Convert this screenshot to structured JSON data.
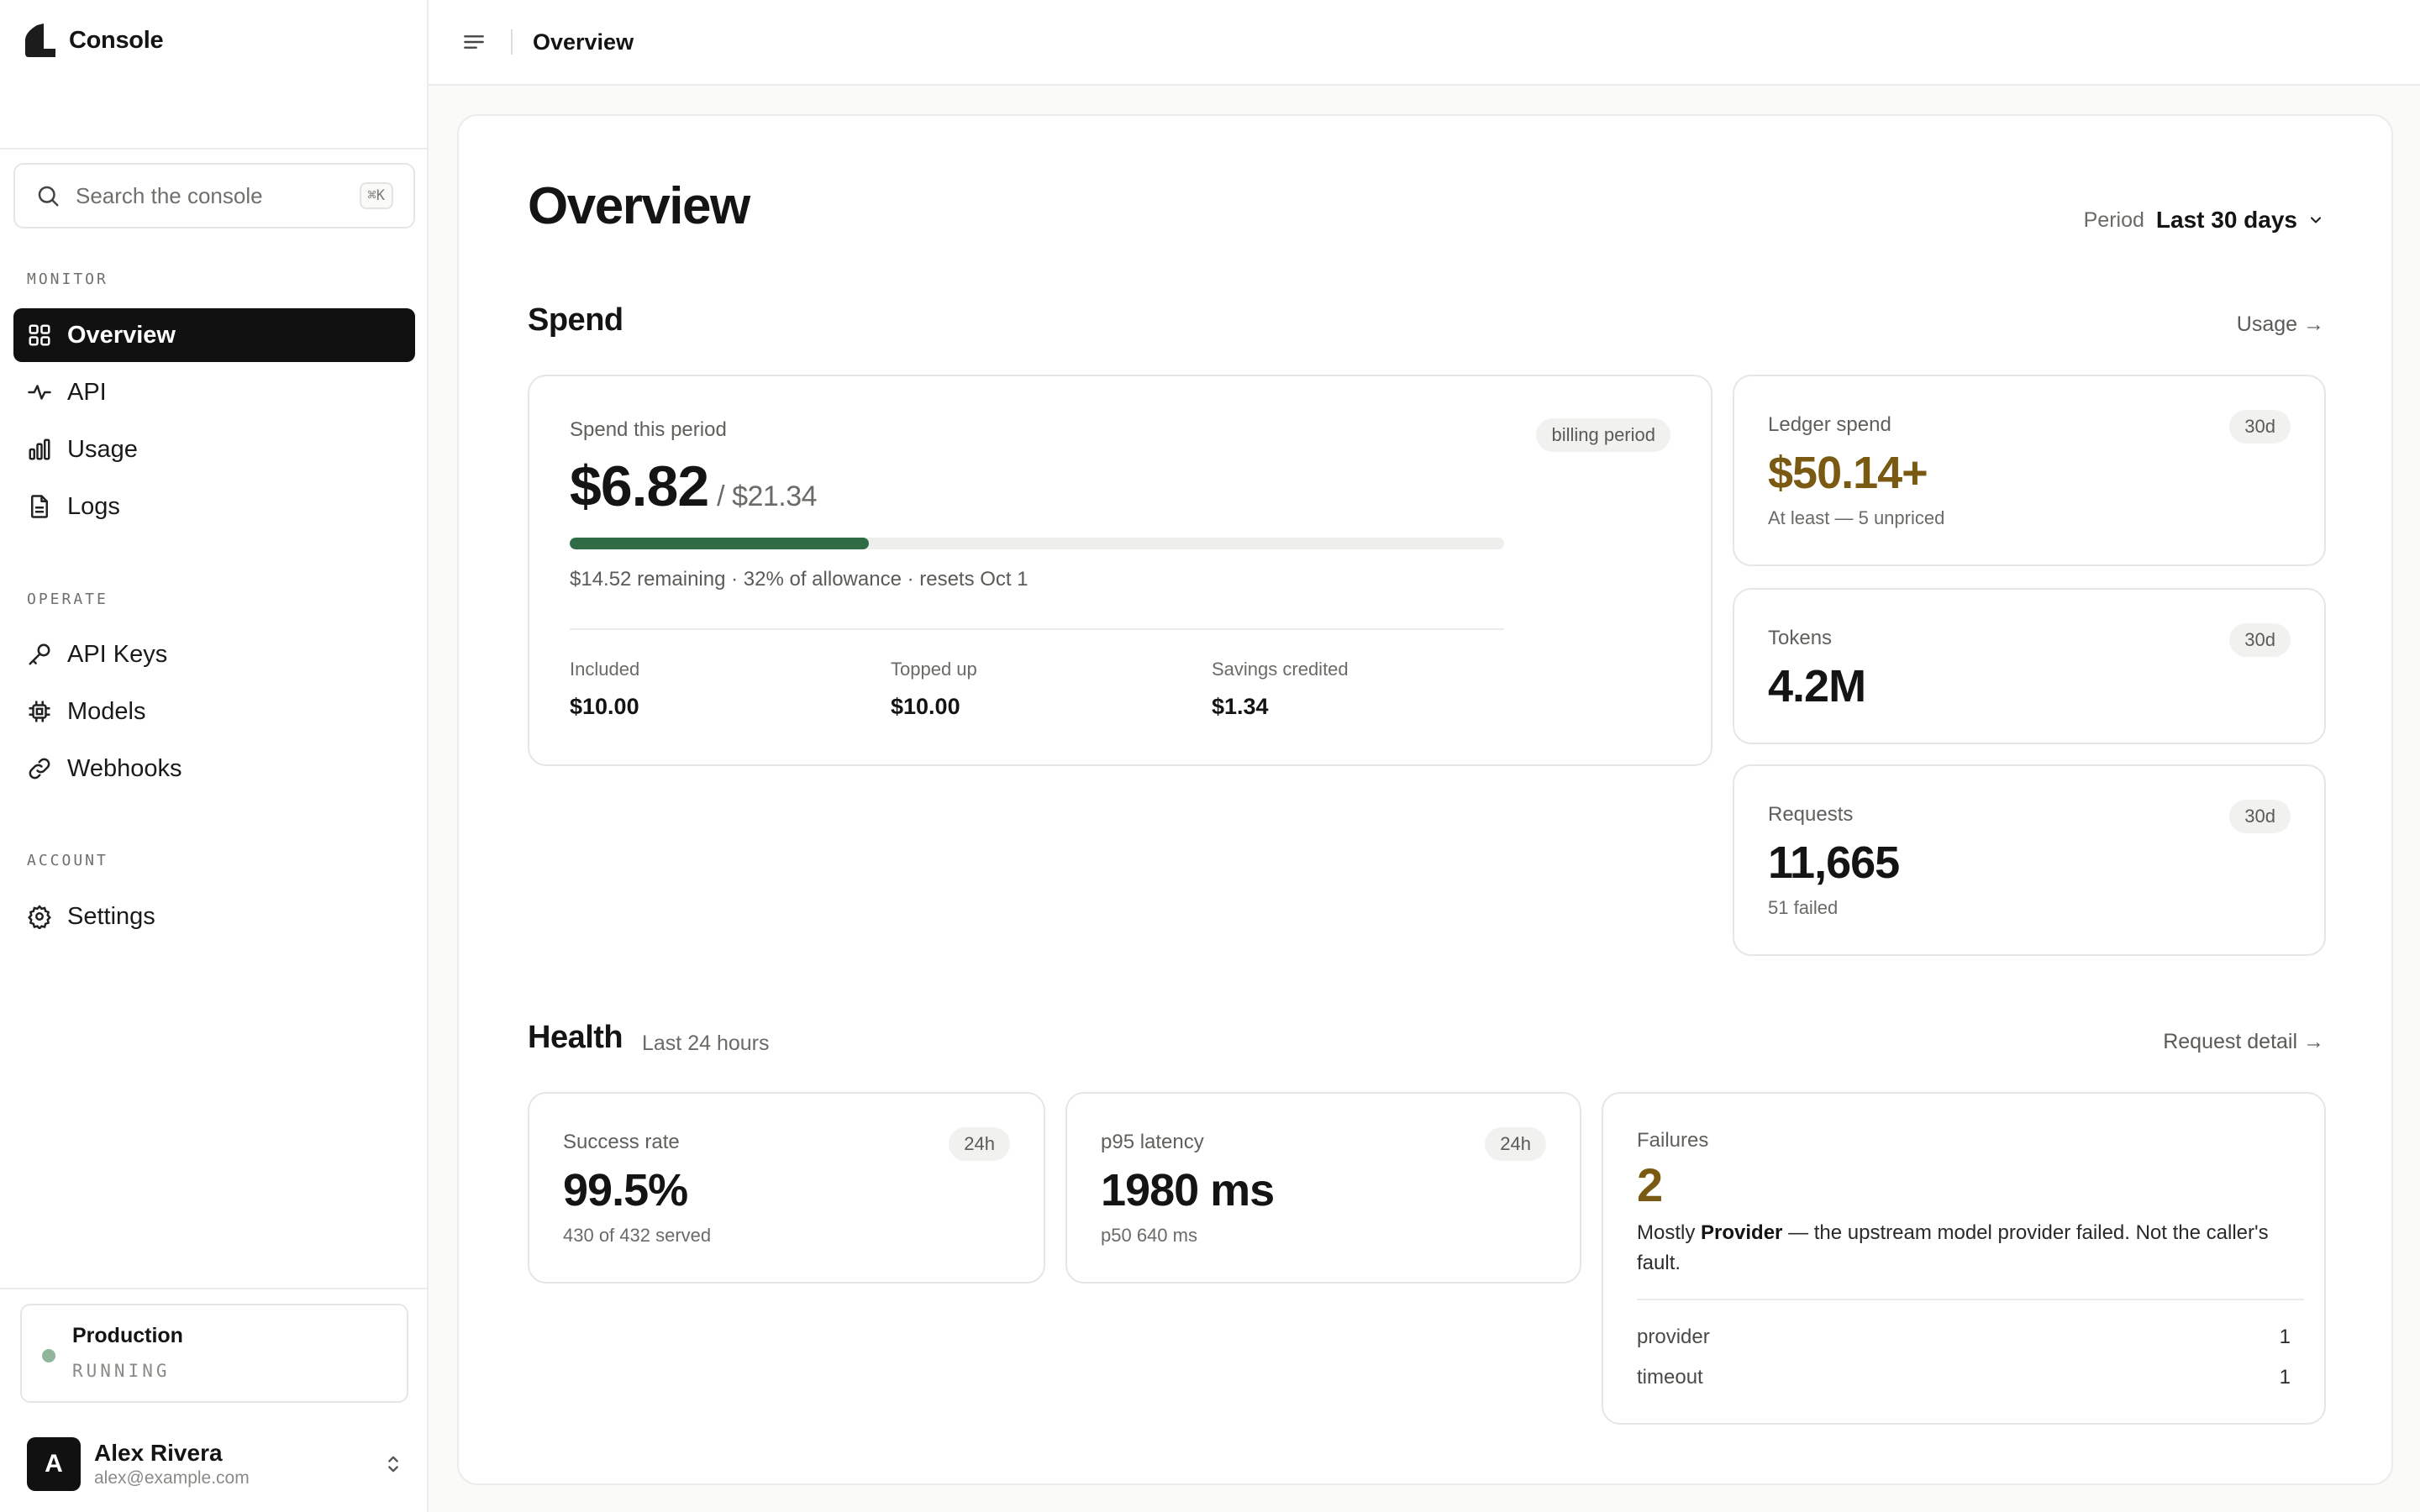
{
  "app": {
    "name": "Console"
  },
  "search": {
    "placeholder": "Search the console",
    "shortcut": "⌘K"
  },
  "sidebar": {
    "sections": [
      {
        "heading": "MONITOR",
        "items": [
          {
            "label": "Overview",
            "icon": "grid-icon",
            "active": true
          },
          {
            "label": "API",
            "icon": "activity-icon"
          },
          {
            "label": "Usage",
            "icon": "bar-chart-icon"
          },
          {
            "label": "Logs",
            "icon": "file-icon"
          }
        ]
      },
      {
        "heading": "OPERATE",
        "items": [
          {
            "label": "API Keys",
            "icon": "key-icon"
          },
          {
            "label": "Models",
            "icon": "chip-icon"
          },
          {
            "label": "Webhooks",
            "icon": "link-icon"
          }
        ]
      },
      {
        "heading": "ACCOUNT",
        "items": [
          {
            "label": "Settings",
            "icon": "gear-icon"
          }
        ]
      }
    ],
    "environment": {
      "name": "Production",
      "status": "RUNNING",
      "status_color": "#8fb59a"
    },
    "user": {
      "initial": "A",
      "name": "Alex Rivera",
      "email": "alex@example.com"
    }
  },
  "topbar": {
    "title": "Overview"
  },
  "main": {
    "title": "Overview",
    "period": {
      "label": "Period",
      "value": "Last 30 days"
    },
    "spend": {
      "title": "Spend",
      "link": "Usage →",
      "period_card": {
        "label": "Spend this period",
        "badge": "billing period",
        "amount": "$6.82",
        "total": "/ $21.34",
        "progress_fraction": 0.32,
        "progress_color": "#2f6b45",
        "summary": "$14.52 remaining · 32% of allowance · resets Oct 1",
        "breakdown": [
          {
            "label": "Included",
            "value": "$10.00"
          },
          {
            "label": "Topped up",
            "value": "$10.00"
          },
          {
            "label": "Savings credited",
            "value": "$1.34"
          }
        ]
      },
      "ledger": {
        "label": "Ledger spend",
        "badge": "30d",
        "value": "$50.14+",
        "note": "At least — 5 unpriced",
        "value_color": "#7a5a12"
      },
      "tokens": {
        "label": "Tokens",
        "badge": "30d",
        "value": "4.2M"
      },
      "requests": {
        "label": "Requests",
        "badge": "30d",
        "value": "11,665",
        "note": "51 failed"
      }
    },
    "health": {
      "title": "Health",
      "subtitle": "Last 24 hours",
      "link": "Request detail →",
      "success": {
        "label": "Success rate",
        "badge": "24h",
        "value": "99.5%",
        "note": "430 of 432 served"
      },
      "latency": {
        "label": "p95 latency",
        "badge": "24h",
        "value": "1980 ms",
        "note": "p50 640 ms"
      },
      "failures": {
        "label": "Failures",
        "value": "2",
        "value_color": "#7a5a12",
        "desc_prefix": "Mostly",
        "desc_strong": "Provider",
        "desc_rest": "— the upstream model provider failed. Not the caller's fault.",
        "rows": [
          {
            "name": "provider",
            "count": "1"
          },
          {
            "name": "timeout",
            "count": "1"
          }
        ]
      }
    }
  }
}
